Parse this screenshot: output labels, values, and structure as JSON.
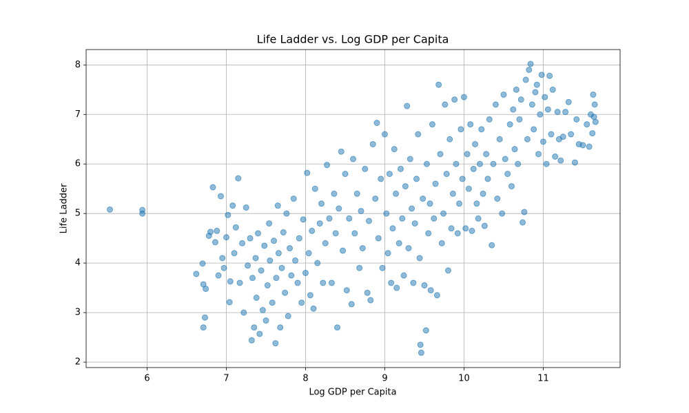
{
  "chart_data": {
    "type": "scatter",
    "title": "Life Ladder vs. Log GDP per Capita",
    "x_label": "Log GDP per Capita",
    "y_label": "Life Ladder",
    "color": "#1f77b4",
    "grid": true,
    "xlim": [
      5.23,
      11.97
    ],
    "ylim": [
      1.89,
      8.31
    ],
    "xticks": [
      6,
      7,
      8,
      9,
      10,
      11
    ],
    "yticks": [
      2,
      3,
      4,
      5,
      6,
      7,
      8
    ],
    "x": [
      5.53,
      5.94,
      5.94,
      6.62,
      6.7,
      6.71,
      6.71,
      6.73,
      6.74,
      6.78,
      6.8,
      6.83,
      6.86,
      6.88,
      6.9,
      6.93,
      6.95,
      6.97,
      7.0,
      7.02,
      7.04,
      7.05,
      7.08,
      7.1,
      7.12,
      7.15,
      7.17,
      7.2,
      7.22,
      7.25,
      7.27,
      7.3,
      7.32,
      7.33,
      7.35,
      7.37,
      7.38,
      7.4,
      7.42,
      7.44,
      7.46,
      7.48,
      7.5,
      7.52,
      7.54,
      7.55,
      7.58,
      7.6,
      7.62,
      7.63,
      7.65,
      7.66,
      7.68,
      7.7,
      7.72,
      7.74,
      7.76,
      7.78,
      7.8,
      7.82,
      7.85,
      7.87,
      7.9,
      7.92,
      7.95,
      7.97,
      8.0,
      8.02,
      8.04,
      8.06,
      8.08,
      8.1,
      8.12,
      8.15,
      8.18,
      8.2,
      8.22,
      8.25,
      8.27,
      8.3,
      8.33,
      8.36,
      8.38,
      8.4,
      8.42,
      8.45,
      8.47,
      8.5,
      8.52,
      8.55,
      8.58,
      8.6,
      8.62,
      8.65,
      8.68,
      8.7,
      8.72,
      8.75,
      8.78,
      8.8,
      8.82,
      8.85,
      8.88,
      8.9,
      8.92,
      8.95,
      8.97,
      9.0,
      9.02,
      9.04,
      9.06,
      9.08,
      9.1,
      9.12,
      9.14,
      9.15,
      9.18,
      9.2,
      9.22,
      9.24,
      9.26,
      9.28,
      9.3,
      9.32,
      9.34,
      9.36,
      9.38,
      9.4,
      9.42,
      9.44,
      9.45,
      9.46,
      9.48,
      9.5,
      9.52,
      9.53,
      9.55,
      9.57,
      9.58,
      9.6,
      9.62,
      9.64,
      9.66,
      9.68,
      9.7,
      9.72,
      9.74,
      9.76,
      9.78,
      9.8,
      9.82,
      9.84,
      9.86,
      9.88,
      9.9,
      9.92,
      9.94,
      9.96,
      9.98,
      10.0,
      10.02,
      10.04,
      10.06,
      10.08,
      10.1,
      10.12,
      10.14,
      10.16,
      10.18,
      10.2,
      10.22,
      10.24,
      10.26,
      10.28,
      10.3,
      10.32,
      10.35,
      10.37,
      10.4,
      10.42,
      10.45,
      10.48,
      10.5,
      10.52,
      10.55,
      10.58,
      10.6,
      10.62,
      10.64,
      10.66,
      10.68,
      10.7,
      10.72,
      10.74,
      10.76,
      10.78,
      10.8,
      10.82,
      10.84,
      10.86,
      10.88,
      10.9,
      10.92,
      10.94,
      10.96,
      10.98,
      11.0,
      11.02,
      11.04,
      11.06,
      11.08,
      11.1,
      11.12,
      11.15,
      11.18,
      11.2,
      11.22,
      11.25,
      11.28,
      11.32,
      11.35,
      11.4,
      11.42,
      11.45,
      11.5,
      11.55,
      11.58,
      11.6,
      11.62,
      11.63,
      11.65,
      11.66,
      11.64
    ],
    "values": [
      5.08,
      5.0,
      5.07,
      3.78,
      3.99,
      3.57,
      2.7,
      2.9,
      3.48,
      4.55,
      4.63,
      5.53,
      4.42,
      4.65,
      3.75,
      5.35,
      4.1,
      3.9,
      4.52,
      4.97,
      3.21,
      3.63,
      5.16,
      4.2,
      4.72,
      5.71,
      3.6,
      4.4,
      3.0,
      5.12,
      3.95,
      4.5,
      2.44,
      3.7,
      2.7,
      4.1,
      3.3,
      4.6,
      2.57,
      3.85,
      3.05,
      4.35,
      2.84,
      3.55,
      4.8,
      4.05,
      3.2,
      4.45,
      2.38,
      3.7,
      5.16,
      4.2,
      2.7,
      3.9,
      4.62,
      3.4,
      5.0,
      2.93,
      4.3,
      3.75,
      5.3,
      4.05,
      3.6,
      4.5,
      3.2,
      4.88,
      3.8,
      5.82,
      4.2,
      3.35,
      4.65,
      3.08,
      5.5,
      4.0,
      4.8,
      5.2,
      3.6,
      4.4,
      5.98,
      4.9,
      3.6,
      5.4,
      4.6,
      2.7,
      5.1,
      6.25,
      4.25,
      5.8,
      3.45,
      4.9,
      3.17,
      6.1,
      4.6,
      5.4,
      3.9,
      5.05,
      4.3,
      5.9,
      3.4,
      4.85,
      3.25,
      6.4,
      5.3,
      6.83,
      4.5,
      5.7,
      3.9,
      6.6,
      5.0,
      4.2,
      5.8,
      3.6,
      4.7,
      6.3,
      5.4,
      3.5,
      4.4,
      5.9,
      4.9,
      3.75,
      5.55,
      7.17,
      4.3,
      6.1,
      5.1,
      3.6,
      4.8,
      5.7,
      6.6,
      4.1,
      2.35,
      2.19,
      5.3,
      3.55,
      2.64,
      6.0,
      4.6,
      5.2,
      3.45,
      6.8,
      4.9,
      5.6,
      3.35,
      7.6,
      6.2,
      4.4,
      5.0,
      7.2,
      5.8,
      3.85,
      6.5,
      4.7,
      5.4,
      7.3,
      6.0,
      4.6,
      5.2,
      6.7,
      5.7,
      7.35,
      4.7,
      6.2,
      5.5,
      6.8,
      4.65,
      5.9,
      6.4,
      5.2,
      4.9,
      6.0,
      6.7,
      5.4,
      4.75,
      6.2,
      5.7,
      6.9,
      4.36,
      6.0,
      7.2,
      5.3,
      6.5,
      5.0,
      7.4,
      6.1,
      5.8,
      6.8,
      5.55,
      7.1,
      6.3,
      7.5,
      6.0,
      6.9,
      7.3,
      4.82,
      5.03,
      7.7,
      6.5,
      7.9,
      8.02,
      7.2,
      6.7,
      7.45,
      7.6,
      6.2,
      7.0,
      7.8,
      6.45,
      7.35,
      6.0,
      7.1,
      7.78,
      6.6,
      7.5,
      6.15,
      7.05,
      6.5,
      6.07,
      6.55,
      7.05,
      7.25,
      6.6,
      6.03,
      6.9,
      6.4,
      6.38,
      6.8,
      6.35,
      7.0,
      6.62,
      7.4,
      7.2,
      6.85,
      6.95
    ]
  }
}
